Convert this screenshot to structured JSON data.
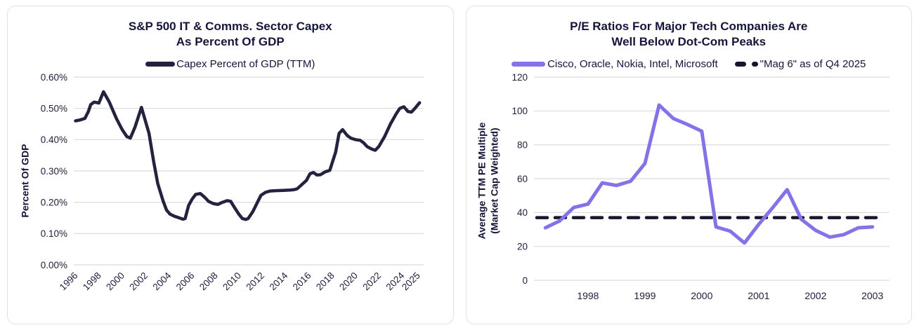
{
  "colors": {
    "navy_line": "#232340",
    "purple_line": "#8273e8",
    "dashed_line": "#16162c",
    "grid": "#d9d9dd",
    "text": "#15153a",
    "card_border": "#e2e2e6",
    "background": "#ffffff"
  },
  "chart_data": [
    {
      "id": "capex-percent-of-gdp",
      "type": "line",
      "title_lines": [
        "S&P 500 IT & Comms. Sector Capex",
        "As Percent Of GDP"
      ],
      "ylabel_lines": [
        "Percent Of GDP"
      ],
      "grid": "horizontal",
      "legend_position": "top",
      "ylim": [
        0,
        0.6
      ],
      "xlim": [
        1995.85,
        2025.85
      ],
      "yticks": [
        {
          "v": 0.0,
          "label": "0.00%"
        },
        {
          "v": 0.1,
          "label": "0.10%"
        },
        {
          "v": 0.2,
          "label": "0.20%"
        },
        {
          "v": 0.3,
          "label": "0.30%"
        },
        {
          "v": 0.4,
          "label": "0.40%"
        },
        {
          "v": 0.5,
          "label": "0.50%"
        },
        {
          "v": 0.6,
          "label": "0.60%"
        }
      ],
      "xticks": [
        {
          "v": 1996,
          "label": "1996"
        },
        {
          "v": 1998,
          "label": "1998"
        },
        {
          "v": 2000,
          "label": "2000"
        },
        {
          "v": 2002,
          "label": "2002"
        },
        {
          "v": 2004,
          "label": "2004"
        },
        {
          "v": 2006,
          "label": "2006"
        },
        {
          "v": 2008,
          "label": "2008"
        },
        {
          "v": 2010,
          "label": "2010"
        },
        {
          "v": 2012,
          "label": "2012"
        },
        {
          "v": 2014,
          "label": "2014"
        },
        {
          "v": 2016,
          "label": "2016"
        },
        {
          "v": 2018,
          "label": "2018"
        },
        {
          "v": 2020,
          "label": "2020"
        },
        {
          "v": 2022,
          "label": "2022"
        },
        {
          "v": 2024,
          "label": "2024"
        },
        {
          "v": 2025.35,
          "label": "2025"
        }
      ],
      "xtick_rotation": -45,
      "series": [
        {
          "name": "Capex Percent of GDP (TTM)",
          "color": "#232340",
          "line_width": 4.5,
          "dash": null,
          "x": [
            1996.0,
            1996.4,
            1996.8,
            1997.1,
            1997.3,
            1997.6,
            1998.0,
            1998.2,
            1998.4,
            1998.9,
            1999.5,
            2000.0,
            2000.4,
            2000.7,
            2001.1,
            2001.65,
            2002.3,
            2002.7,
            2003.05,
            2003.5,
            2003.8,
            2004.1,
            2004.5,
            2004.9,
            2005.2,
            2005.4,
            2005.7,
            2006.0,
            2006.3,
            2006.7,
            2007.1,
            2007.4,
            2007.8,
            2008.2,
            2008.6,
            2009.0,
            2009.3,
            2009.6,
            2010.0,
            2010.3,
            2010.6,
            2010.8,
            2011.2,
            2011.6,
            2011.9,
            2012.3,
            2012.7,
            2013.2,
            2013.8,
            2014.4,
            2014.7,
            2015.0,
            2015.8,
            2016.1,
            2016.4,
            2016.7,
            2017.0,
            2017.4,
            2017.8,
            2018.3,
            2018.6,
            2018.9,
            2019.3,
            2019.6,
            2020.0,
            2020.4,
            2020.7,
            2021.0,
            2021.4,
            2021.7,
            2022.0,
            2022.5,
            2023.0,
            2023.5,
            2023.8,
            2024.15,
            2024.5,
            2024.8,
            2025.1,
            2025.5
          ],
          "y": [
            0.46,
            0.463,
            0.468,
            0.49,
            0.512,
            0.52,
            0.517,
            0.535,
            0.553,
            0.52,
            0.468,
            0.432,
            0.41,
            0.405,
            0.44,
            0.503,
            0.42,
            0.33,
            0.26,
            0.205,
            0.175,
            0.162,
            0.155,
            0.15,
            0.146,
            0.148,
            0.19,
            0.21,
            0.225,
            0.228,
            0.215,
            0.203,
            0.196,
            0.193,
            0.2,
            0.205,
            0.203,
            0.185,
            0.162,
            0.148,
            0.145,
            0.148,
            0.17,
            0.2,
            0.222,
            0.232,
            0.236,
            0.237,
            0.238,
            0.239,
            0.24,
            0.243,
            0.27,
            0.291,
            0.295,
            0.287,
            0.288,
            0.297,
            0.302,
            0.36,
            0.42,
            0.432,
            0.413,
            0.405,
            0.4,
            0.398,
            0.39,
            0.378,
            0.37,
            0.366,
            0.378,
            0.41,
            0.45,
            0.483,
            0.5,
            0.505,
            0.49,
            0.488,
            0.5,
            0.518
          ]
        }
      ]
    },
    {
      "id": "tech-pe-ratios",
      "type": "line",
      "title_lines": [
        "P/E Ratios For Major Tech Companies Are",
        "Well Below Dot-Com Peaks"
      ],
      "ylabel_lines": [
        "Average TTM PE Multiple",
        "(Market Cap Weighted)"
      ],
      "grid": "horizontal",
      "legend_position": "top",
      "ylim": [
        0,
        120
      ],
      "xlim": [
        1997.05,
        2003.3
      ],
      "yticks": [
        {
          "v": 0,
          "label": "0"
        },
        {
          "v": 20,
          "label": "20"
        },
        {
          "v": 40,
          "label": "40"
        },
        {
          "v": 60,
          "label": "60"
        },
        {
          "v": 80,
          "label": "80"
        },
        {
          "v": 100,
          "label": "100"
        },
        {
          "v": 120,
          "label": "120"
        }
      ],
      "xticks": [
        {
          "v": 1998,
          "label": "1998"
        },
        {
          "v": 1999,
          "label": "1999"
        },
        {
          "v": 2000,
          "label": "2000"
        },
        {
          "v": 2001,
          "label": "2001"
        },
        {
          "v": 2002,
          "label": "2002"
        },
        {
          "v": 2003,
          "label": "2003"
        }
      ],
      "xtick_rotation": 0,
      "series": [
        {
          "name": "Cisco, Oracle, Nokia, Intel, Microsoft",
          "color": "#8273e8",
          "line_width": 5,
          "dash": null,
          "x": [
            1997.25,
            1997.5,
            1997.75,
            1998.0,
            1998.25,
            1998.5,
            1998.75,
            1999.0,
            1999.25,
            1999.5,
            1999.75,
            2000.0,
            2000.25,
            2000.5,
            2000.75,
            2001.0,
            2001.25,
            2001.5,
            2001.75,
            2002.0,
            2002.25,
            2002.5,
            2002.75,
            2003.0
          ],
          "y": [
            31,
            35,
            43,
            45,
            57.5,
            56,
            58.5,
            69,
            103.5,
            95.5,
            92,
            88,
            31.5,
            29,
            22,
            33,
            43,
            53.5,
            36,
            29.5,
            25.5,
            27,
            31,
            31.5
          ]
        },
        {
          "name": "\"Mag 6\" as of Q4 2025",
          "color": "#16162c",
          "line_width": 4.5,
          "dash": [
            15,
            11
          ],
          "x": [
            1997.1,
            2003.15
          ],
          "y": [
            37,
            37
          ]
        }
      ]
    }
  ]
}
